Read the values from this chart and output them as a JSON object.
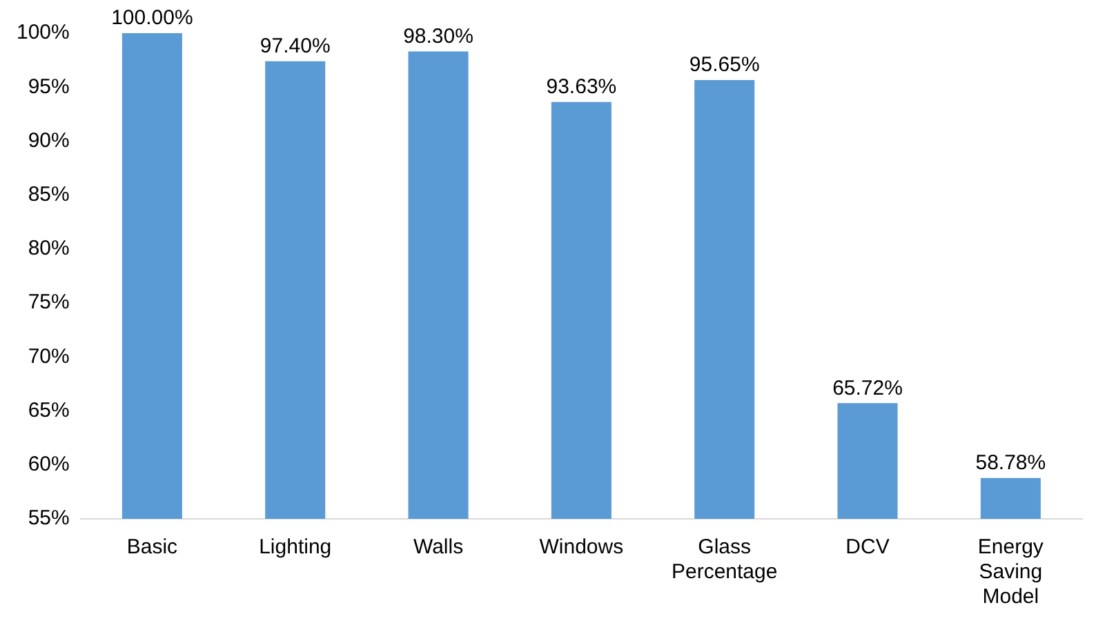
{
  "chart_data": {
    "type": "bar",
    "categories": [
      "Basic",
      "Lighting",
      "Walls",
      "Windows",
      "Glass Percentage",
      "DCV",
      "Energy Saving Model"
    ],
    "values": [
      100,
      97.4,
      98.3,
      93.63,
      95.65,
      65.72,
      58.78
    ],
    "value_labels": [
      "100.00%",
      "97.40%",
      "98.30%",
      "93.63%",
      "95.65%",
      "65.72%",
      "58.78%"
    ],
    "color": "#5b9bd5",
    "ylim": [
      55,
      100
    ],
    "yticks": [
      {
        "value": 55,
        "label": "55%"
      },
      {
        "value": 60,
        "label": "60%"
      },
      {
        "value": 65,
        "label": "65%"
      },
      {
        "value": 70,
        "label": "70%"
      },
      {
        "value": 75,
        "label": "75%"
      },
      {
        "value": 80,
        "label": "80%"
      },
      {
        "value": 85,
        "label": "85%"
      },
      {
        "value": 90,
        "label": "90%"
      },
      {
        "value": 95,
        "label": "95%"
      },
      {
        "value": 100,
        "label": "100%"
      }
    ],
    "grid": false,
    "legend": false
  }
}
